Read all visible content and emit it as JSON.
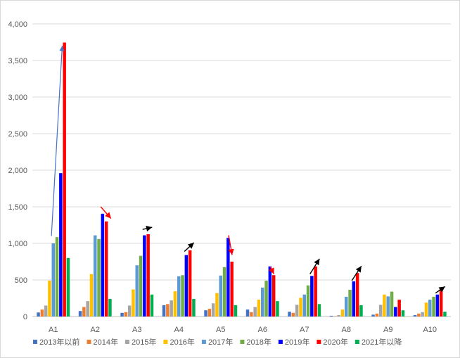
{
  "chart_data": {
    "type": "bar",
    "title": "",
    "xlabel": "",
    "ylabel": "",
    "ylim": [
      0,
      4000
    ],
    "yticks": [
      0,
      500,
      1000,
      1500,
      2000,
      2500,
      3000,
      3500,
      4000
    ],
    "ytick_labels": [
      "0",
      "500",
      "1,000",
      "1,500",
      "2,000",
      "2,500",
      "3,000",
      "3,500",
      "4,000"
    ],
    "grid": true,
    "legend_position": "bottom",
    "categories": [
      "A1",
      "A2",
      "A3",
      "A4",
      "A5",
      "A6",
      "A7",
      "A8",
      "A9",
      "A10"
    ],
    "series": [
      {
        "name": "2013年以前",
        "color": "#4472c4",
        "values": [
          55,
          75,
          50,
          155,
          85,
          95,
          65,
          10,
          25,
          20
        ]
      },
      {
        "name": "2014年",
        "color": "#ed7d31",
        "values": [
          95,
          130,
          60,
          170,
          105,
          60,
          50,
          5,
          40,
          40
        ]
      },
      {
        "name": "2015年",
        "color": "#a5a5a5",
        "values": [
          150,
          210,
          150,
          220,
          180,
          130,
          160,
          20,
          160,
          60
        ]
      },
      {
        "name": "2016年",
        "color": "#ffc000",
        "values": [
          490,
          580,
          370,
          345,
          320,
          230,
          255,
          95,
          300,
          190
        ]
      },
      {
        "name": "2017年",
        "color": "#5b9bd5",
        "values": [
          1000,
          1110,
          700,
          550,
          560,
          395,
          300,
          270,
          275,
          230
        ]
      },
      {
        "name": "2018年",
        "color": "#70ad47",
        "values": [
          1085,
          1060,
          830,
          565,
          675,
          490,
          425,
          365,
          340,
          270
        ]
      },
      {
        "name": "2019年",
        "color": "#0000ff",
        "values": [
          1960,
          1405,
          1110,
          840,
          1075,
          685,
          555,
          480,
          130,
          300
        ]
      },
      {
        "name": "2020年",
        "color": "#ff0000",
        "values": [
          3745,
          1300,
          1125,
          905,
          750,
          565,
          685,
          595,
          230,
          380
        ]
      },
      {
        "name": "2021年以降",
        "color": "#00b050",
        "values": [
          800,
          240,
          300,
          240,
          155,
          210,
          170,
          155,
          85,
          65
        ]
      }
    ],
    "annotations": [
      {
        "type": "arrow",
        "color": "#4472c4",
        "category": "A1",
        "from": 1100,
        "to": 3700
      },
      {
        "type": "arrow",
        "color": "#ff0000",
        "category": "A2",
        "from": 1500,
        "to": 1340
      },
      {
        "type": "arrow",
        "color": "#000000",
        "category": "A3",
        "from": 1190,
        "to": 1220
      },
      {
        "type": "arrow",
        "color": "#000000",
        "category": "A4",
        "from": 890,
        "to": 1010
      },
      {
        "type": "arrow",
        "color": "#ff0000",
        "category": "A5",
        "from": 1110,
        "to": 840
      },
      {
        "type": "arrow",
        "color": "#ff0000",
        "category": "A6",
        "from": 680,
        "to": 580
      },
      {
        "type": "arrow",
        "color": "#000000",
        "category": "A7",
        "from": 580,
        "to": 790
      },
      {
        "type": "arrow",
        "color": "#000000",
        "category": "A8",
        "from": 490,
        "to": 690
      },
      {
        "type": "arrow",
        "color": "#000000",
        "category": "A10",
        "from": 320,
        "to": 410
      }
    ]
  }
}
